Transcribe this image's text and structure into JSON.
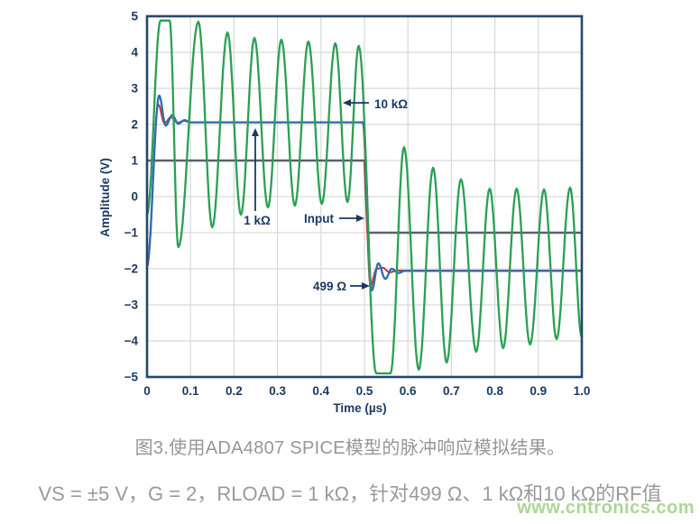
{
  "captions": {
    "title": "图3.使用ADA4807 SPICE模型的脉冲响应模拟结果。",
    "conditions": "VS = ±5 V，G = 2，RLOAD = 1 kΩ，针对499 Ω、1 kΩ和10 kΩ的RF值"
  },
  "watermark": {
    "text": "www.cntronics.com",
    "color": "#aad795"
  },
  "chart_data": {
    "type": "line",
    "title": "ADA4807 SPICE pulse response simulation",
    "xlabel": "Time (µs)",
    "ylabel": "Amplitude (V)",
    "xlim": [
      0,
      1.0
    ],
    "ylim": [
      -5,
      5
    ],
    "grid": true,
    "legend_position": "annotations-inside-plot",
    "x_ticks": [
      "0",
      "0.1",
      "0.2",
      "0.3",
      "0.4",
      "0.5",
      "0.6",
      "0.7",
      "0.8",
      "0.9",
      "1.0"
    ],
    "y_ticks": [
      "5",
      "4",
      "3",
      "2",
      "1",
      "0",
      "−1",
      "−2",
      "−3",
      "−4",
      "−5"
    ],
    "colors": {
      "axis": "#24486e",
      "grid": "#d6dad6",
      "labels": "#1b3a63",
      "input": "#57616b",
      "r499": "#c2393f",
      "r1k": "#2e6cb0",
      "r10k": "#2aa053"
    },
    "annotations": [
      {
        "label": "10 kΩ",
        "points_to": "r10k trace"
      },
      {
        "label": "1 kΩ",
        "points_to": "r1k flat level 2.1 V"
      },
      {
        "label": "Input",
        "points_to": "input falling edge at 0.5 µs"
      },
      {
        "label": "499 Ω",
        "points_to": "r499 undershoot near −2.5 V"
      }
    ],
    "series": [
      {
        "name": "Input",
        "key": "input",
        "color": "#57616b",
        "style": "step",
        "width": 2.4,
        "points": [
          [
            0,
            1
          ],
          [
            0.5,
            1
          ],
          [
            0.507,
            -1
          ],
          [
            1.0,
            -1
          ]
        ]
      },
      {
        "name": "499 Ω",
        "key": "r499",
        "color": "#c2393f",
        "style": "smooth",
        "width": 2.0,
        "points": [
          [
            0,
            -1.95
          ],
          [
            0.026,
            2.55
          ],
          [
            0.04,
            2.04
          ],
          [
            0.055,
            2.2
          ],
          [
            0.07,
            2.05
          ],
          [
            0.085,
            2.1
          ],
          [
            0.1,
            2.06
          ],
          [
            0.496,
            2.06
          ],
          [
            0.514,
            -2.48
          ],
          [
            0.528,
            -2.0
          ],
          [
            0.542,
            -1.97
          ],
          [
            0.558,
            -2.1
          ],
          [
            0.575,
            -2.05
          ],
          [
            1.0,
            -2.05
          ]
        ]
      },
      {
        "name": "1 kΩ",
        "key": "r1k",
        "color": "#2e6cb0",
        "style": "smooth",
        "width": 2.3,
        "points": [
          [
            0,
            -1.85
          ],
          [
            0.028,
            2.8
          ],
          [
            0.043,
            1.97
          ],
          [
            0.058,
            2.26
          ],
          [
            0.072,
            2.02
          ],
          [
            0.086,
            2.12
          ],
          [
            0.1,
            2.06
          ],
          [
            0.497,
            2.06
          ],
          [
            0.517,
            -2.6
          ],
          [
            0.532,
            -1.85
          ],
          [
            0.548,
            -2.28
          ],
          [
            0.563,
            -2.0
          ],
          [
            0.578,
            -2.12
          ],
          [
            0.592,
            -2.06
          ],
          [
            1.0,
            -2.06
          ]
        ]
      },
      {
        "name": "10 kΩ",
        "key": "r10k",
        "color": "#2aa053",
        "style": "smooth",
        "width": 2.3,
        "points": [
          [
            0,
            -0.5
          ],
          [
            0.031,
            4.88
          ],
          [
            0.052,
            4.88
          ],
          [
            0.072,
            -1.4
          ],
          [
            0.118,
            4.85
          ],
          [
            0.15,
            -0.85
          ],
          [
            0.185,
            4.55
          ],
          [
            0.216,
            -0.5
          ],
          [
            0.247,
            4.4
          ],
          [
            0.278,
            -0.3
          ],
          [
            0.309,
            4.35
          ],
          [
            0.34,
            -0.25
          ],
          [
            0.371,
            4.3
          ],
          [
            0.402,
            -0.2
          ],
          [
            0.433,
            4.25
          ],
          [
            0.461,
            -0.15
          ],
          [
            0.487,
            4.18
          ],
          [
            0.527,
            -4.9
          ],
          [
            0.56,
            -4.9
          ],
          [
            0.591,
            1.37
          ],
          [
            0.625,
            -4.8
          ],
          [
            0.658,
            0.8
          ],
          [
            0.689,
            -4.6
          ],
          [
            0.722,
            0.48
          ],
          [
            0.757,
            -4.3
          ],
          [
            0.788,
            0.22
          ],
          [
            0.819,
            -4.2
          ],
          [
            0.85,
            0.22
          ],
          [
            0.881,
            -4.1
          ],
          [
            0.913,
            0.2
          ],
          [
            0.942,
            -3.95
          ],
          [
            0.973,
            0.25
          ],
          [
            1.0,
            -3.9
          ]
        ]
      }
    ]
  }
}
